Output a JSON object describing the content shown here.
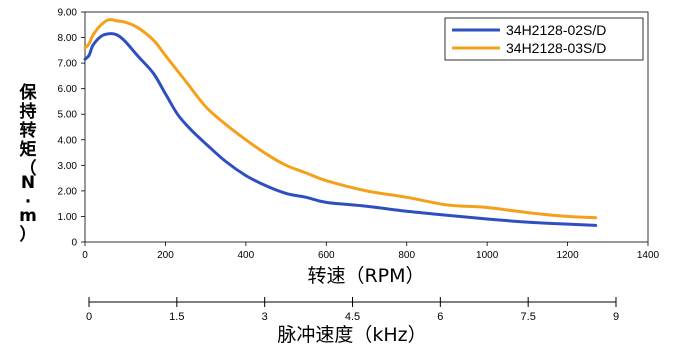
{
  "chart_data": {
    "type": "line",
    "xlabel": "转速（RPM）",
    "ylabel": "保持转矩（N·m）",
    "xlim": [
      0,
      1400
    ],
    "ylim": [
      0,
      9
    ],
    "x_ticks": [
      "0",
      "200",
      "400",
      "600",
      "800",
      "1000",
      "1200",
      "1400"
    ],
    "y_ticks": [
      "0",
      "1.00",
      "2.00",
      "3.00",
      "4.00",
      "5.00",
      "6.00",
      "7.00",
      "8.00",
      "9.00"
    ],
    "grid": false,
    "legend_position": "top-right",
    "series": [
      {
        "name": "34H2128-02S/D",
        "color": "#2e4fbf",
        "x": [
          0,
          10,
          20,
          40,
          60,
          80,
          100,
          130,
          170,
          200,
          230,
          260,
          300,
          350,
          400,
          450,
          500,
          550,
          600,
          700,
          800,
          900,
          1000,
          1100,
          1200,
          1270
        ],
        "y": [
          7.15,
          7.3,
          7.7,
          8.05,
          8.15,
          8.1,
          7.85,
          7.3,
          6.6,
          5.8,
          5.0,
          4.45,
          3.85,
          3.15,
          2.6,
          2.2,
          1.9,
          1.75,
          1.55,
          1.4,
          1.2,
          1.05,
          0.9,
          0.78,
          0.7,
          0.65
        ]
      },
      {
        "name": "34H2128-03S/D",
        "color": "#f5a01a",
        "x": [
          0,
          10,
          20,
          40,
          60,
          80,
          100,
          130,
          170,
          200,
          250,
          300,
          350,
          400,
          450,
          500,
          550,
          600,
          700,
          800,
          900,
          1000,
          1100,
          1200,
          1270
        ],
        "y": [
          7.6,
          7.75,
          8.1,
          8.5,
          8.7,
          8.65,
          8.6,
          8.4,
          7.9,
          7.3,
          6.3,
          5.3,
          4.6,
          4.0,
          3.45,
          3.0,
          2.7,
          2.4,
          2.0,
          1.75,
          1.45,
          1.35,
          1.15,
          1.0,
          0.95
        ]
      }
    ],
    "secondary_axis": {
      "label": "脉冲速度（kHz）",
      "ticks": [
        "0",
        "1.5",
        "3",
        "4.5",
        "6",
        "7.5",
        "9"
      ]
    }
  }
}
